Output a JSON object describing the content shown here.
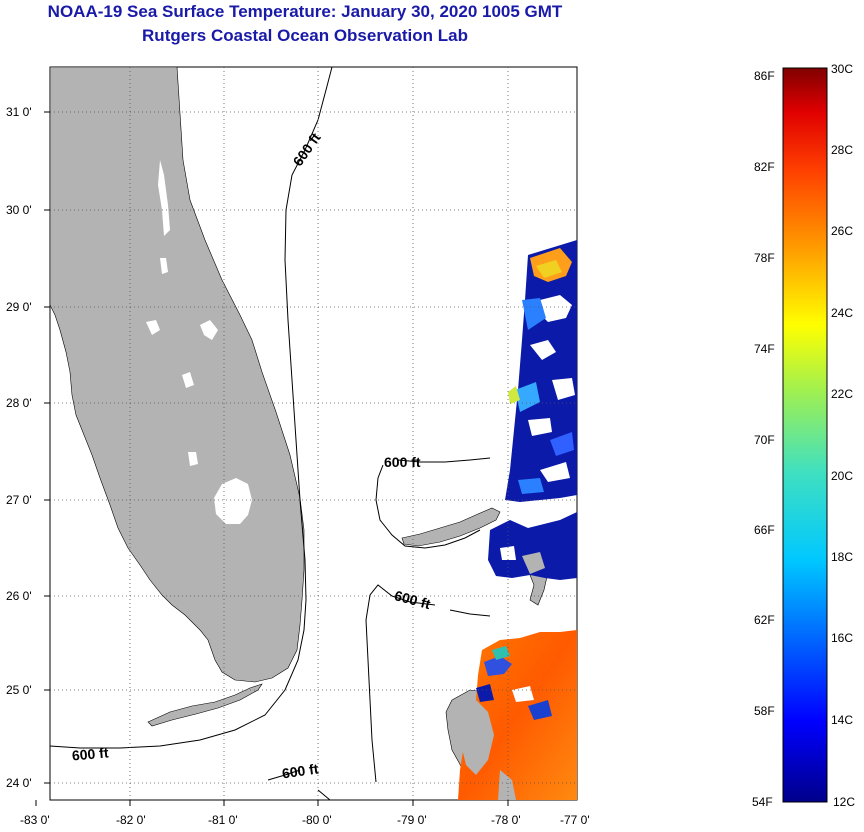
{
  "title": {
    "line1": "NOAA-19 Sea Surface Temperature:  January 30, 2020 1005 GMT",
    "line2": "Rutgers Coastal Ocean Observation Lab"
  },
  "map": {
    "lon_ticks": [
      "-83 0'",
      "-82 0'",
      "-81 0'",
      "-80 0'",
      "-79 0'",
      "-78 0'",
      "-77 0'"
    ],
    "lat_ticks": [
      "31 0'",
      "30 0'",
      "29 0'",
      "28 0'",
      "27 0'",
      "26 0'",
      "25 0'",
      "24 0'"
    ],
    "contour_labels": [
      "600 ft",
      "600 ft",
      "600 ft",
      "600 ft",
      "600 ft"
    ],
    "colors": {
      "land": "#b3b3b3",
      "grid": "#555555"
    }
  },
  "colorbar": {
    "fahrenheit": [
      "86F",
      "82F",
      "78F",
      "74F",
      "70F",
      "66F",
      "62F",
      "58F",
      "54F"
    ],
    "celsius": [
      "30C",
      "28C",
      "26C",
      "24C",
      "22C",
      "20C",
      "18C",
      "16C",
      "14C",
      "12C"
    ]
  }
}
